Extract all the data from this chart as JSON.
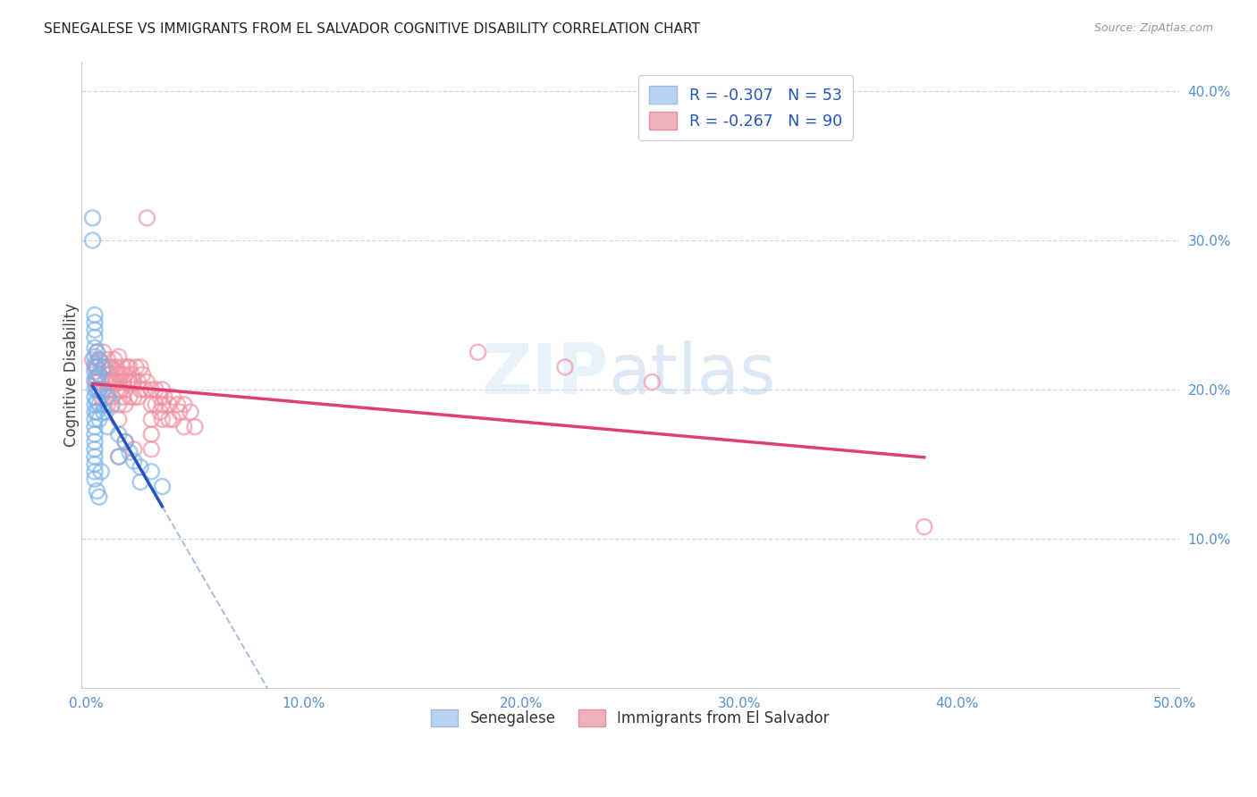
{
  "title": "SENEGALESE VS IMMIGRANTS FROM EL SALVADOR COGNITIVE DISABILITY CORRELATION CHART",
  "source": "Source: ZipAtlas.com",
  "ylabel": "Cognitive Disability",
  "xlim": [
    0.0,
    0.5
  ],
  "ylim": [
    0.0,
    0.42
  ],
  "xticks": [
    0.0,
    0.1,
    0.2,
    0.3,
    0.4,
    0.5
  ],
  "xtick_labels": [
    "0.0%",
    "10.0%",
    "20.0%",
    "30.0%",
    "40.0%",
    "50.0%"
  ],
  "yticks": [
    0.1,
    0.2,
    0.3,
    0.4
  ],
  "ytick_labels": [
    "10.0%",
    "20.0%",
    "30.0%",
    "40.0%"
  ],
  "senegalese_color": "#7ab3e8",
  "senegalese_edge_color": "#5590d0",
  "elsalvador_color": "#f090a0",
  "elsalvador_edge_color": "#d86070",
  "trendline_blue_color": "#2255bb",
  "trendline_blue_dashed_color": "#aac0e0",
  "trendline_pink_color": "#e04070",
  "watermark": "ZIPatlas",
  "background_color": "#ffffff",
  "grid_color": "#c8d8ec",
  "tick_color": "#5590d0",
  "legend_box_blue": "#b8d4f0",
  "legend_box_pink": "#f0b0bc",
  "legend_text_color": "#2255bb",
  "senegalese_points": [
    [
      0.003,
      0.315
    ],
    [
      0.003,
      0.3
    ],
    [
      0.004,
      0.25
    ],
    [
      0.004,
      0.245
    ],
    [
      0.004,
      0.24
    ],
    [
      0.004,
      0.235
    ],
    [
      0.004,
      0.228
    ],
    [
      0.004,
      0.222
    ],
    [
      0.004,
      0.217
    ],
    [
      0.004,
      0.212
    ],
    [
      0.004,
      0.207
    ],
    [
      0.004,
      0.2
    ],
    [
      0.004,
      0.195
    ],
    [
      0.004,
      0.19
    ],
    [
      0.004,
      0.185
    ],
    [
      0.004,
      0.18
    ],
    [
      0.004,
      0.175
    ],
    [
      0.004,
      0.17
    ],
    [
      0.004,
      0.165
    ],
    [
      0.004,
      0.16
    ],
    [
      0.004,
      0.155
    ],
    [
      0.004,
      0.15
    ],
    [
      0.004,
      0.145
    ],
    [
      0.004,
      0.14
    ],
    [
      0.005,
      0.225
    ],
    [
      0.005,
      0.215
    ],
    [
      0.005,
      0.208
    ],
    [
      0.005,
      0.2
    ],
    [
      0.005,
      0.192
    ],
    [
      0.005,
      0.185
    ],
    [
      0.006,
      0.22
    ],
    [
      0.006,
      0.21
    ],
    [
      0.006,
      0.2
    ],
    [
      0.006,
      0.19
    ],
    [
      0.006,
      0.18
    ],
    [
      0.008,
      0.215
    ],
    [
      0.008,
      0.2
    ],
    [
      0.008,
      0.185
    ],
    [
      0.01,
      0.195
    ],
    [
      0.01,
      0.175
    ],
    [
      0.012,
      0.19
    ],
    [
      0.015,
      0.17
    ],
    [
      0.015,
      0.155
    ],
    [
      0.018,
      0.165
    ],
    [
      0.02,
      0.158
    ],
    [
      0.022,
      0.152
    ],
    [
      0.025,
      0.148
    ],
    [
      0.025,
      0.138
    ],
    [
      0.03,
      0.145
    ],
    [
      0.035,
      0.135
    ],
    [
      0.005,
      0.132
    ],
    [
      0.006,
      0.128
    ],
    [
      0.007,
      0.145
    ]
  ],
  "elsalvador_points": [
    [
      0.003,
      0.22
    ],
    [
      0.004,
      0.215
    ],
    [
      0.004,
      0.205
    ],
    [
      0.005,
      0.225
    ],
    [
      0.005,
      0.215
    ],
    [
      0.005,
      0.205
    ],
    [
      0.006,
      0.22
    ],
    [
      0.006,
      0.21
    ],
    [
      0.006,
      0.2
    ],
    [
      0.007,
      0.218
    ],
    [
      0.007,
      0.208
    ],
    [
      0.007,
      0.195
    ],
    [
      0.008,
      0.225
    ],
    [
      0.008,
      0.215
    ],
    [
      0.008,
      0.2
    ],
    [
      0.008,
      0.19
    ],
    [
      0.009,
      0.215
    ],
    [
      0.009,
      0.205
    ],
    [
      0.009,
      0.195
    ],
    [
      0.01,
      0.22
    ],
    [
      0.01,
      0.21
    ],
    [
      0.01,
      0.2
    ],
    [
      0.01,
      0.19
    ],
    [
      0.011,
      0.215
    ],
    [
      0.011,
      0.205
    ],
    [
      0.012,
      0.215
    ],
    [
      0.012,
      0.205
    ],
    [
      0.012,
      0.195
    ],
    [
      0.013,
      0.22
    ],
    [
      0.013,
      0.205
    ],
    [
      0.014,
      0.215
    ],
    [
      0.014,
      0.205
    ],
    [
      0.015,
      0.222
    ],
    [
      0.015,
      0.21
    ],
    [
      0.015,
      0.2
    ],
    [
      0.015,
      0.19
    ],
    [
      0.015,
      0.18
    ],
    [
      0.016,
      0.21
    ],
    [
      0.016,
      0.2
    ],
    [
      0.017,
      0.215
    ],
    [
      0.017,
      0.205
    ],
    [
      0.017,
      0.195
    ],
    [
      0.018,
      0.21
    ],
    [
      0.018,
      0.2
    ],
    [
      0.018,
      0.19
    ],
    [
      0.019,
      0.215
    ],
    [
      0.019,
      0.205
    ],
    [
      0.02,
      0.215
    ],
    [
      0.02,
      0.205
    ],
    [
      0.02,
      0.195
    ],
    [
      0.021,
      0.21
    ],
    [
      0.022,
      0.205
    ],
    [
      0.022,
      0.195
    ],
    [
      0.023,
      0.215
    ],
    [
      0.024,
      0.205
    ],
    [
      0.024,
      0.195
    ],
    [
      0.025,
      0.215
    ],
    [
      0.025,
      0.2
    ],
    [
      0.026,
      0.21
    ],
    [
      0.027,
      0.2
    ],
    [
      0.028,
      0.205
    ],
    [
      0.028,
      0.315
    ],
    [
      0.03,
      0.2
    ],
    [
      0.03,
      0.19
    ],
    [
      0.03,
      0.18
    ],
    [
      0.03,
      0.17
    ],
    [
      0.03,
      0.16
    ],
    [
      0.032,
      0.2
    ],
    [
      0.032,
      0.19
    ],
    [
      0.034,
      0.195
    ],
    [
      0.034,
      0.185
    ],
    [
      0.035,
      0.2
    ],
    [
      0.035,
      0.19
    ],
    [
      0.035,
      0.18
    ],
    [
      0.036,
      0.195
    ],
    [
      0.038,
      0.19
    ],
    [
      0.038,
      0.18
    ],
    [
      0.04,
      0.195
    ],
    [
      0.04,
      0.18
    ],
    [
      0.042,
      0.19
    ],
    [
      0.043,
      0.185
    ],
    [
      0.045,
      0.19
    ],
    [
      0.045,
      0.175
    ],
    [
      0.048,
      0.185
    ],
    [
      0.05,
      0.175
    ],
    [
      0.022,
      0.16
    ],
    [
      0.018,
      0.165
    ],
    [
      0.015,
      0.155
    ],
    [
      0.385,
      0.108
    ],
    [
      0.18,
      0.225
    ],
    [
      0.22,
      0.215
    ],
    [
      0.26,
      0.205
    ]
  ]
}
